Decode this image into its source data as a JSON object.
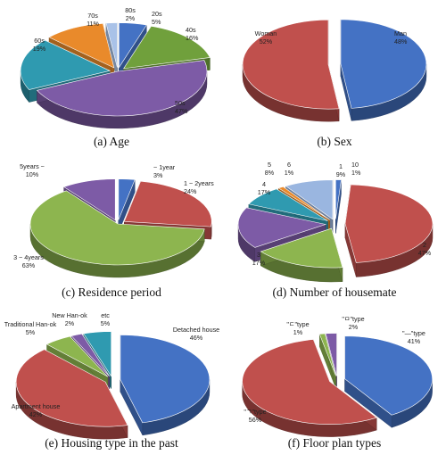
{
  "chart_data": [
    {
      "type": "pie",
      "caption": "(a) Age",
      "slices": [
        {
          "name": "20s",
          "value": 5,
          "pct": "5%",
          "color": "#4472C4"
        },
        {
          "name": "40s",
          "value": 16,
          "pct": "16%",
          "color": "#70A03C"
        },
        {
          "name": "50s",
          "value": 47,
          "pct": "47%",
          "color": "#7D5BA6"
        },
        {
          "name": "60s",
          "value": 19,
          "pct": "19%",
          "color": "#2F9AB0"
        },
        {
          "name": "70s",
          "value": 11,
          "pct": "11%",
          "color": "#E98A2B"
        },
        {
          "name": "80s",
          "value": 2,
          "pct": "2%",
          "color": "#A9C2E8"
        }
      ]
    },
    {
      "type": "pie",
      "caption": "(b) Sex",
      "slices": [
        {
          "name": "Man",
          "value": 48,
          "pct": "48%",
          "color": "#4472C4"
        },
        {
          "name": "Woman",
          "value": 52,
          "pct": "52%",
          "color": "#C0504D"
        }
      ]
    },
    {
      "type": "pie",
      "caption": "(c) Residence period",
      "slices": [
        {
          "name": "~ 1year",
          "value": 3,
          "pct": "3%",
          "color": "#4472C4"
        },
        {
          "name": "1 ~ 2years",
          "value": 24,
          "pct": "24%",
          "color": "#C0504D"
        },
        {
          "name": "3 ~ 4years",
          "value": 63,
          "pct": "63%",
          "color": "#8DB54F"
        },
        {
          "name": "5years ~",
          "value": 10,
          "pct": "10%",
          "color": "#7D5BA6"
        }
      ]
    },
    {
      "type": "pie",
      "caption": "(d) Number of housemate",
      "slices": [
        {
          "name": "10",
          "value": 1,
          "pct": "1%",
          "color": "#4472C4"
        },
        {
          "name": "2",
          "value": 47,
          "pct": "47%",
          "color": "#C0504D"
        },
        {
          "name": "3",
          "value": 17,
          "pct": "17%",
          "color": "#8DB54F"
        },
        {
          "name": "4",
          "value": 17,
          "pct": "17%",
          "color": "#7D5BA6"
        },
        {
          "name": "5",
          "value": 8,
          "pct": "8%",
          "color": "#2F9AB0"
        },
        {
          "name": "6",
          "value": 1,
          "pct": "1%",
          "color": "#E98A2B"
        },
        {
          "name": "1",
          "value": 9,
          "pct": "9%",
          "color": "#9AB6E0"
        }
      ]
    },
    {
      "type": "pie",
      "caption": "(e) Housing type in the past",
      "slices": [
        {
          "name": "Detached house",
          "value": 46,
          "pct": "46%",
          "color": "#4472C4"
        },
        {
          "name": "Apartment house",
          "value": 42,
          "pct": "42%",
          "color": "#C0504D"
        },
        {
          "name": "Traditional Han-ok",
          "value": 5,
          "pct": "5%",
          "color": "#8DB54F"
        },
        {
          "name": "New Han-ok",
          "value": 2,
          "pct": "2%",
          "color": "#7D5BA6"
        },
        {
          "name": "etc",
          "value": 5,
          "pct": "5%",
          "color": "#2F9AB0"
        }
      ]
    },
    {
      "type": "pie",
      "caption": "(f) Floor plan types",
      "slices": [
        {
          "name": "\"—\"type",
          "value": 41,
          "pct": "41%",
          "color": "#4472C4"
        },
        {
          "name": "\"ㄱ\"type",
          "value": 56,
          "pct": "56%",
          "color": "#C0504D"
        },
        {
          "name": "\"ㄷ\"type",
          "value": 1,
          "pct": "1%",
          "color": "#8DB54F"
        },
        {
          "name": "\"ㅁ\"type",
          "value": 2,
          "pct": "2%",
          "color": "#7D5BA6"
        }
      ]
    }
  ]
}
